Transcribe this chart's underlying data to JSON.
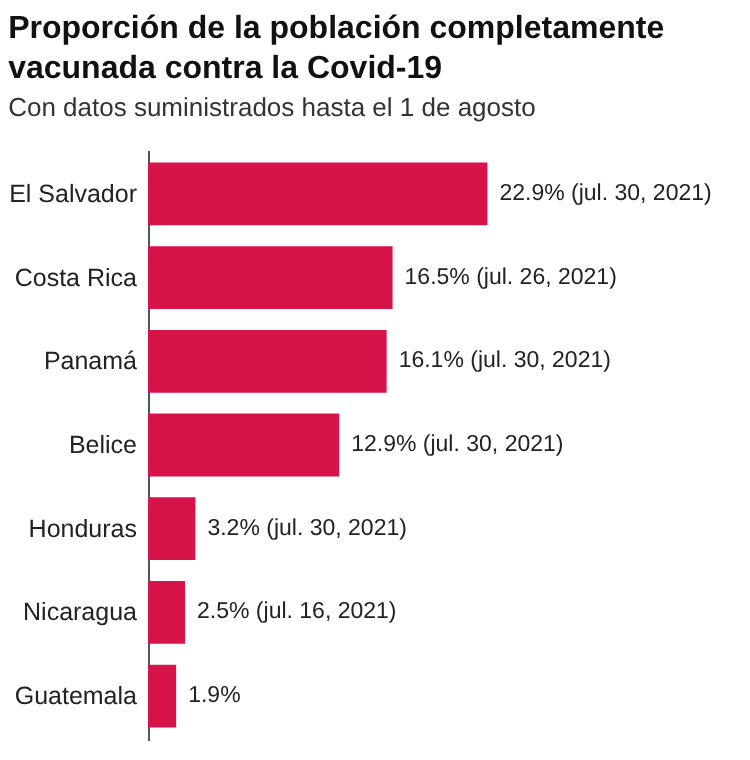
{
  "chart_data": {
    "type": "bar",
    "orientation": "horizontal",
    "title": "Proporción de la población completamente vacunada contra la Covid-19",
    "subtitle": "Con datos suministrados hasta el 1 de agosto",
    "categories": [
      "El Salvador",
      "Costa Rica",
      "Panamá",
      "Belice",
      "Honduras",
      "Nicaragua",
      "Guatemala"
    ],
    "values": [
      22.9,
      16.5,
      16.1,
      12.9,
      3.2,
      2.5,
      1.9
    ],
    "value_labels": [
      "22.9% (jul. 30, 2021)",
      "16.5% (jul. 26, 2021)",
      "16.1% (jul. 30, 2021)",
      "12.9% (jul. 30, 2021)",
      "3.2% (jul. 30, 2021)",
      "2.5% (jul. 16, 2021)",
      "1.9%"
    ],
    "color": "#d7144a"
  }
}
